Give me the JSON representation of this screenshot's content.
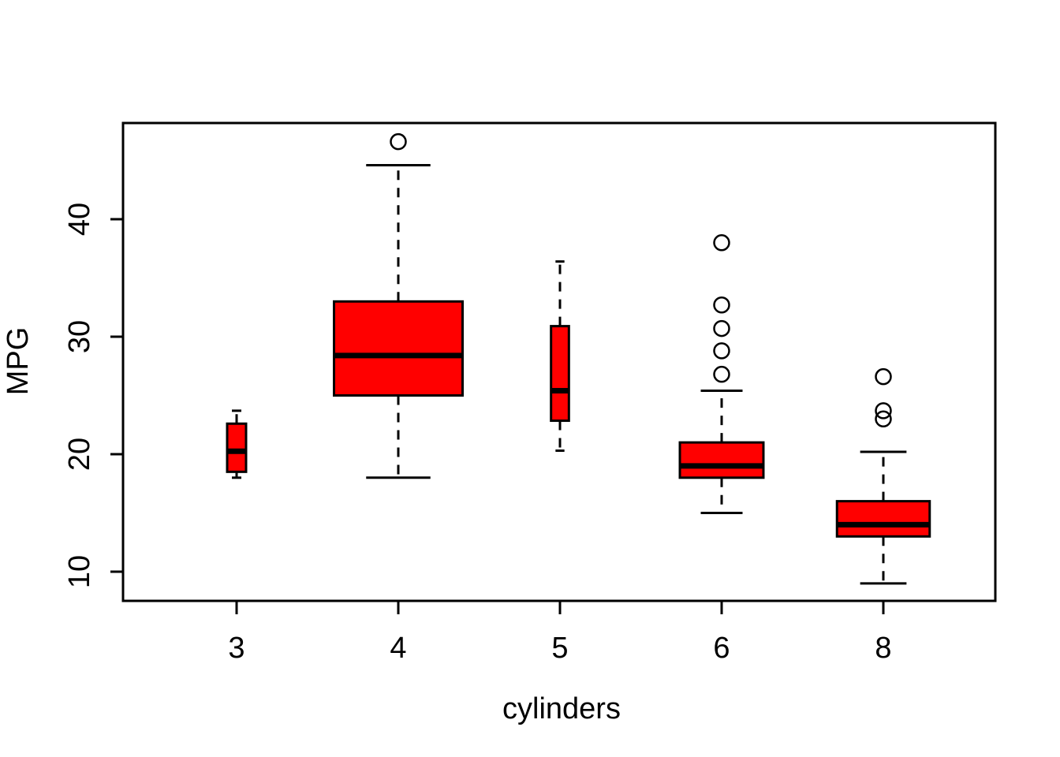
{
  "figure": {
    "background_color": "#ffffff",
    "line_color": "#000000",
    "box_fill_color": "#ff0000"
  },
  "chart_data": {
    "type": "boxplot",
    "title": "",
    "xlabel": "cylinders",
    "ylabel": "MPG",
    "ylim": [
      7.5,
      48.2
    ],
    "y_ticks": [
      10,
      20,
      30,
      40
    ],
    "grid": "off",
    "legend": "none",
    "style": "r-base-varwidth",
    "groups": [
      {
        "label": "3",
        "relative_width": 0.147,
        "whisker_low": 18.0,
        "q1": 18.5,
        "median": 20.25,
        "q3": 22.6,
        "whisker_high": 23.7,
        "outliers": []
      },
      {
        "label": "4",
        "relative_width": 1.0,
        "whisker_low": 18.0,
        "q1": 25.0,
        "median": 28.4,
        "q3": 33.0,
        "whisker_high": 44.6,
        "outliers": [
          46.6
        ]
      },
      {
        "label": "5",
        "relative_width": 0.139,
        "whisker_low": 20.3,
        "q1": 22.85,
        "median": 25.4,
        "q3": 30.9,
        "whisker_high": 36.4,
        "outliers": []
      },
      {
        "label": "6",
        "relative_width": 0.65,
        "whisker_low": 15.0,
        "q1": 18.0,
        "median": 19.0,
        "q3": 21.0,
        "whisker_high": 25.4,
        "outliers": [
          26.8,
          28.8,
          30.7,
          32.7,
          38.0
        ]
      },
      {
        "label": "8",
        "relative_width": 0.721,
        "whisker_low": 9.0,
        "q1": 13.0,
        "median": 14.0,
        "q3": 16.0,
        "whisker_high": 20.2,
        "outliers": [
          23.0,
          23.7,
          26.6
        ]
      }
    ]
  }
}
